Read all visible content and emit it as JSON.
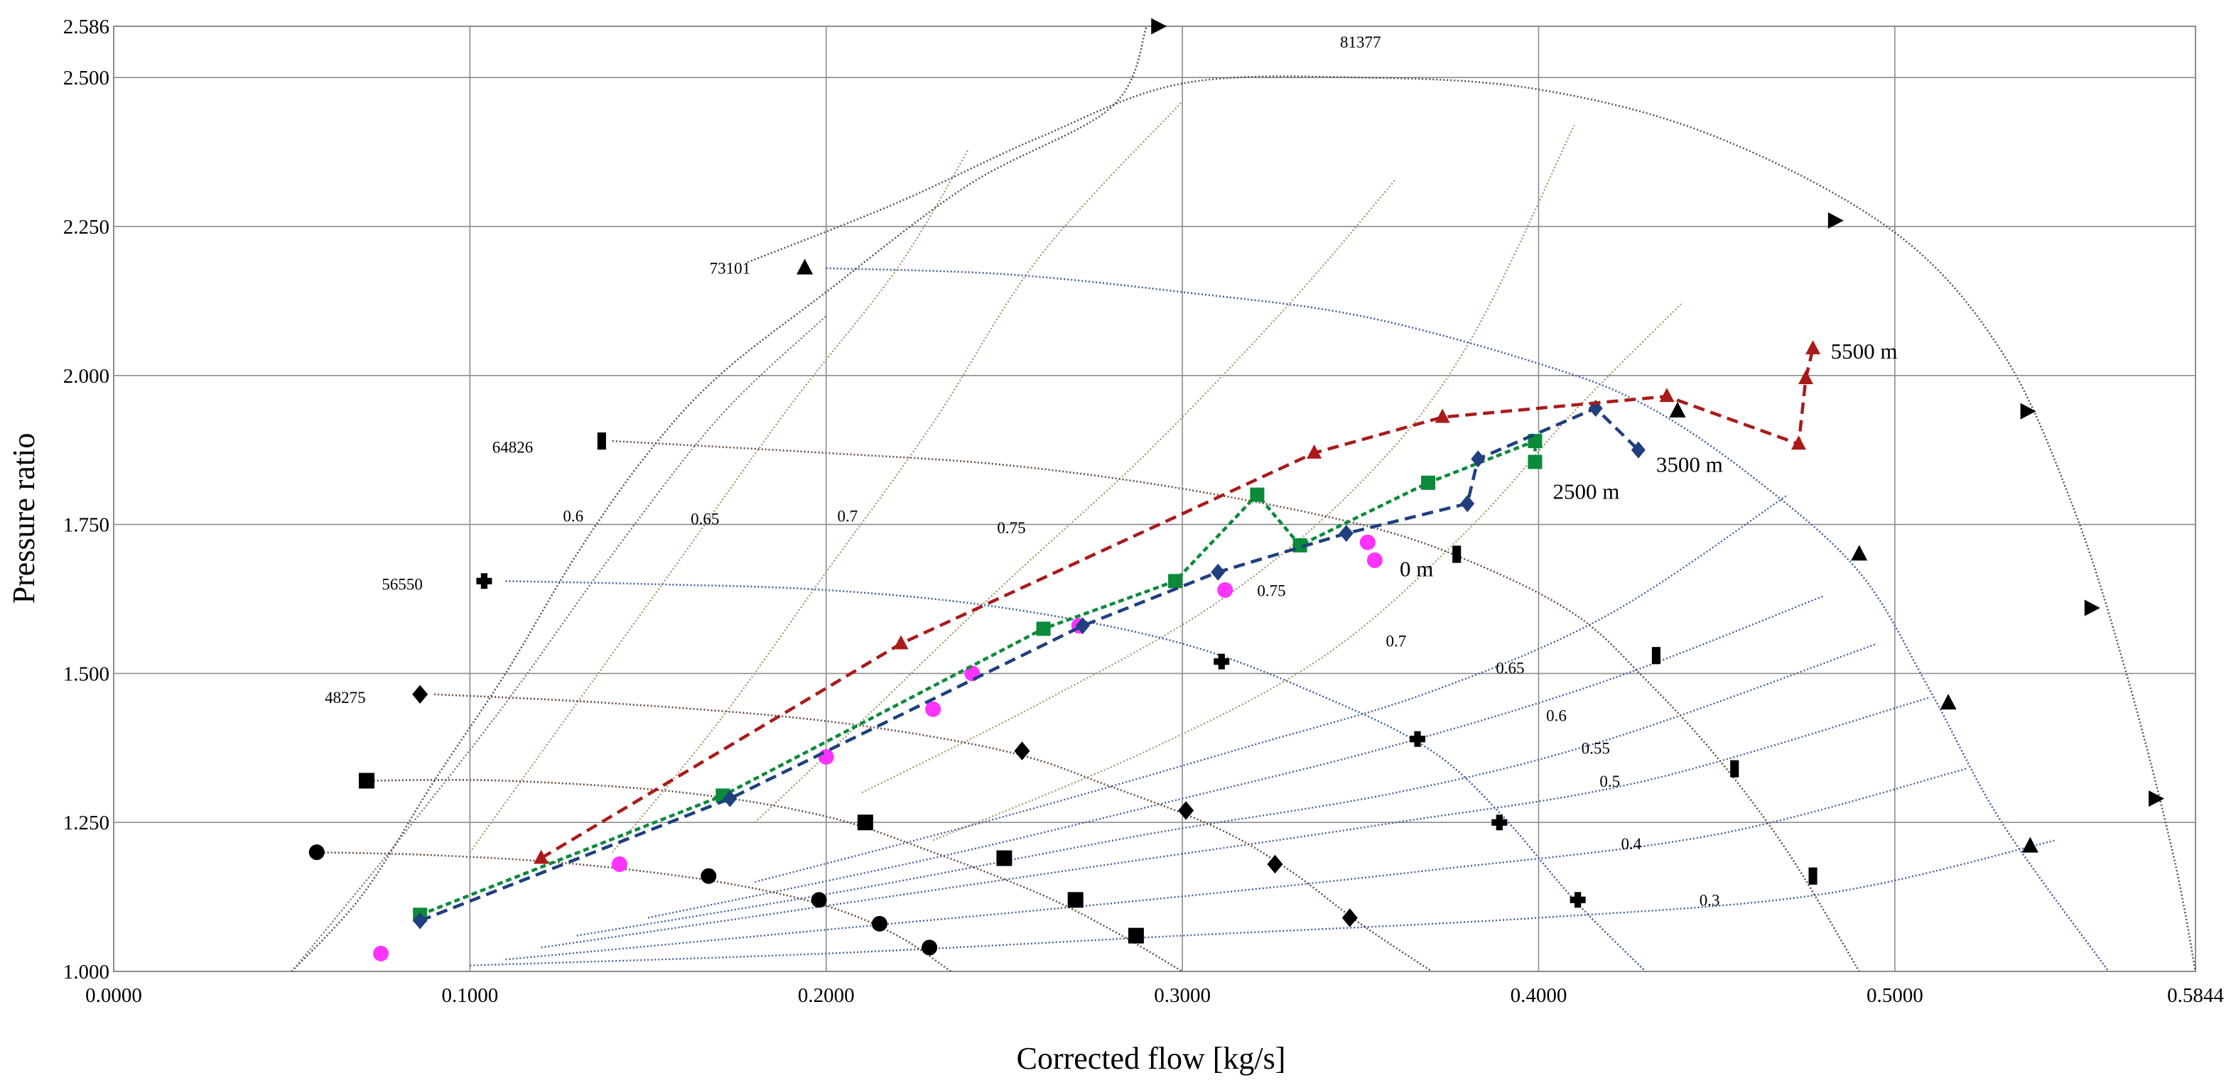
{
  "chart_data": {
    "type": "line",
    "title": "",
    "xlabel": "Corrected flow [kg/s]",
    "ylabel": "Pressure ratio",
    "xlim": [
      0.0,
      0.5844
    ],
    "ylim": [
      1.0,
      2.586
    ],
    "x_ticks": [
      {
        "value": 0.0,
        "label": "0.0000"
      },
      {
        "value": 0.1,
        "label": "0.1000"
      },
      {
        "value": 0.2,
        "label": "0.2000"
      },
      {
        "value": 0.3,
        "label": "0.3000"
      },
      {
        "value": 0.4,
        "label": "0.4000"
      },
      {
        "value": 0.5,
        "label": "0.5000"
      },
      {
        "value": 0.5844,
        "label": "0.5844"
      }
    ],
    "y_ticks": [
      {
        "value": 1.0,
        "label": "1.000"
      },
      {
        "value": 1.25,
        "label": "1.250"
      },
      {
        "value": 1.5,
        "label": "1.500"
      },
      {
        "value": 1.75,
        "label": "1.750"
      },
      {
        "value": 2.0,
        "label": "2.000"
      },
      {
        "value": 2.25,
        "label": "2.250"
      },
      {
        "value": 2.5,
        "label": "2.500"
      },
      {
        "value": 2.586,
        "label": "2.586"
      }
    ],
    "grid": true,
    "speed_lines": [
      {
        "name": "81377",
        "label": "81377",
        "color": "#555555",
        "marker": "triangle-right",
        "label_at": [
          0.35,
          2.56
        ],
        "x": [
          0.178,
          0.22,
          0.26,
          0.3,
          0.35,
          0.4,
          0.45,
          0.5,
          0.53,
          0.55,
          0.565,
          0.578,
          0.5844
        ],
        "y": [
          2.19,
          2.29,
          2.4,
          2.49,
          2.5,
          2.48,
          2.4,
          2.24,
          2.04,
          1.78,
          1.5,
          1.2,
          1.0
        ],
        "markers_x": [
          0.293,
          0.483,
          0.537,
          0.555,
          0.573
        ],
        "markers_y": [
          2.586,
          2.26,
          1.94,
          1.61,
          1.29
        ]
      },
      {
        "name": "73101",
        "label": "73101",
        "color": "#3f5f9f",
        "marker": "triangle-up",
        "label_at": [
          0.173,
          2.18
        ],
        "x": [
          0.2,
          0.25,
          0.3,
          0.35,
          0.4,
          0.43,
          0.46,
          0.49,
          0.51,
          0.53,
          0.56
        ],
        "y": [
          2.18,
          2.17,
          2.14,
          2.1,
          2.02,
          1.95,
          1.83,
          1.67,
          1.47,
          1.25,
          1.0
        ],
        "markers_x": [
          0.194,
          0.439,
          0.49,
          0.515,
          0.538
        ],
        "markers_y": [
          2.18,
          1.94,
          1.7,
          1.45,
          1.21
        ]
      },
      {
        "name": "64826",
        "label": "64826",
        "color": "#6b4c3b",
        "marker": "rect-v",
        "label_at": [
          0.112,
          1.88
        ],
        "x": [
          0.14,
          0.2,
          0.25,
          0.3,
          0.35,
          0.38,
          0.41,
          0.43,
          0.45,
          0.47,
          0.49
        ],
        "y": [
          1.89,
          1.87,
          1.85,
          1.81,
          1.75,
          1.69,
          1.6,
          1.49,
          1.36,
          1.2,
          1.0
        ],
        "markers_x": [
          0.137,
          0.377,
          0.433,
          0.455,
          0.477
        ],
        "markers_y": [
          1.89,
          1.7,
          1.53,
          1.34,
          1.16
        ]
      },
      {
        "name": "56550",
        "label": "56550",
        "color": "#3f5f9f",
        "marker": "plus",
        "label_at": [
          0.081,
          1.65
        ],
        "x": [
          0.11,
          0.15,
          0.2,
          0.25,
          0.3,
          0.34,
          0.37,
          0.39,
          0.41,
          0.43
        ],
        "y": [
          1.655,
          1.65,
          1.64,
          1.61,
          1.55,
          1.46,
          1.37,
          1.26,
          1.12,
          1.0
        ],
        "markers_x": [
          0.104,
          0.311,
          0.366,
          0.389,
          0.411
        ],
        "markers_y": [
          1.655,
          1.52,
          1.39,
          1.25,
          1.12
        ]
      },
      {
        "name": "48275",
        "label": "48275",
        "color": "#6b4c3b",
        "marker": "diamond",
        "label_at": [
          0.065,
          1.46
        ],
        "x": [
          0.09,
          0.14,
          0.2,
          0.25,
          0.28,
          0.31,
          0.33,
          0.35,
          0.37
        ],
        "y": [
          1.465,
          1.45,
          1.42,
          1.37,
          1.31,
          1.24,
          1.17,
          1.08,
          1.0
        ],
        "markers_x": [
          0.086,
          0.255,
          0.301,
          0.326,
          0.347
        ],
        "markers_y": [
          1.465,
          1.37,
          1.27,
          1.18,
          1.09
        ]
      },
      {
        "name": "square",
        "label": "",
        "color": "#6b4c3b",
        "marker": "square",
        "label_at": null,
        "x": [
          0.07,
          0.11,
          0.16,
          0.2,
          0.23,
          0.26,
          0.28,
          0.3
        ],
        "y": [
          1.32,
          1.32,
          1.3,
          1.26,
          1.2,
          1.13,
          1.07,
          1.0
        ],
        "markers_x": [
          0.071,
          0.211,
          0.25,
          0.27,
          0.287
        ],
        "markers_y": [
          1.32,
          1.25,
          1.19,
          1.12,
          1.06
        ]
      },
      {
        "name": "circle",
        "label": "",
        "color": "#6b4c3b",
        "marker": "circle",
        "label_at": null,
        "x": [
          0.057,
          0.09,
          0.13,
          0.17,
          0.2,
          0.22,
          0.235
        ],
        "y": [
          1.2,
          1.195,
          1.18,
          1.15,
          1.11,
          1.06,
          1.0
        ],
        "markers_x": [
          0.057,
          0.167,
          0.198,
          0.215,
          0.229
        ],
        "markers_y": [
          1.2,
          1.16,
          1.12,
          1.08,
          1.04
        ]
      }
    ],
    "efficiency_lines": [
      {
        "label": "0.6",
        "color": "#777777",
        "label_at": [
          0.129,
          1.755
        ],
        "x": [
          0.05,
          0.08,
          0.11,
          0.14,
          0.17,
          0.2
        ],
        "y": [
          1.0,
          1.22,
          1.45,
          1.7,
          1.93,
          2.1
        ]
      },
      {
        "label": "0.65",
        "color": "#a89a6a",
        "label_at": [
          0.166,
          1.75
        ],
        "x": [
          0.1,
          0.13,
          0.16,
          0.19,
          0.22,
          0.24
        ],
        "y": [
          1.2,
          1.45,
          1.7,
          1.95,
          2.18,
          2.38
        ]
      },
      {
        "label": "0.7",
        "color": "#a89a6a",
        "label_at": [
          0.206,
          1.755
        ],
        "x": [
          0.14,
          0.17,
          0.2,
          0.23,
          0.26,
          0.3
        ],
        "y": [
          1.2,
          1.42,
          1.67,
          1.92,
          2.2,
          2.46
        ]
      },
      {
        "label": "0.75",
        "color": "#a89a6a",
        "label_at": [
          0.252,
          1.735
        ],
        "x": [
          0.18,
          0.21,
          0.25,
          0.29,
          0.33,
          0.36
        ],
        "y": [
          1.25,
          1.42,
          1.65,
          1.87,
          2.12,
          2.33
        ]
      },
      {
        "label": "0.75",
        "color": "#a89a6a",
        "label_at": [
          0.325,
          1.63
        ],
        "x": [
          0.21,
          0.26,
          0.31,
          0.35,
          0.38,
          0.41
        ],
        "y": [
          1.3,
          1.45,
          1.62,
          1.82,
          2.05,
          2.42
        ]
      },
      {
        "label": "0.7",
        "color": "#a89a6a",
        "label_at": [
          0.36,
          1.545
        ],
        "x": [
          0.23,
          0.29,
          0.34,
          0.38,
          0.41,
          0.44
        ],
        "y": [
          1.22,
          1.37,
          1.53,
          1.74,
          1.94,
          2.12
        ]
      },
      {
        "label": "0.65",
        "color": "#3f5f9f",
        "label_at": [
          0.392,
          1.5
        ],
        "x": [
          0.18,
          0.25,
          0.32,
          0.37,
          0.42,
          0.47
        ],
        "y": [
          1.15,
          1.26,
          1.38,
          1.47,
          1.6,
          1.8
        ]
      },
      {
        "label": "0.6",
        "color": "#3f5f9f",
        "label_at": [
          0.405,
          1.42
        ],
        "x": [
          0.15,
          0.23,
          0.3,
          0.36,
          0.42,
          0.48
        ],
        "y": [
          1.09,
          1.19,
          1.29,
          1.38,
          1.49,
          1.63
        ]
      },
      {
        "label": "0.55",
        "color": "#3f5f9f",
        "label_at": [
          0.416,
          1.365
        ],
        "x": [
          0.13,
          0.21,
          0.29,
          0.36,
          0.42,
          0.495
        ],
        "y": [
          1.06,
          1.14,
          1.23,
          1.3,
          1.39,
          1.55
        ]
      },
      {
        "label": "0.5",
        "color": "#3f5f9f",
        "label_at": [
          0.42,
          1.31
        ],
        "x": [
          0.12,
          0.2,
          0.28,
          0.36,
          0.43,
          0.51
        ],
        "y": [
          1.04,
          1.11,
          1.18,
          1.25,
          1.32,
          1.46
        ]
      },
      {
        "label": "0.4",
        "color": "#3f5f9f",
        "label_at": [
          0.426,
          1.205
        ],
        "x": [
          0.11,
          0.2,
          0.29,
          0.37,
          0.45,
          0.52
        ],
        "y": [
          1.02,
          1.07,
          1.12,
          1.17,
          1.23,
          1.34
        ]
      },
      {
        "label": "0.3",
        "color": "#3f5f9f",
        "label_at": [
          0.448,
          1.11
        ],
        "x": [
          0.1,
          0.2,
          0.3,
          0.4,
          0.48,
          0.545
        ],
        "y": [
          1.01,
          1.03,
          1.06,
          1.09,
          1.13,
          1.22
        ]
      }
    ],
    "surge_line": {
      "color": "#555555",
      "x": [
        0.05,
        0.07,
        0.09,
        0.11,
        0.13,
        0.15,
        0.17,
        0.2,
        0.24,
        0.28,
        0.29
      ],
      "y": [
        1.0,
        1.13,
        1.32,
        1.5,
        1.7,
        1.87,
        2.0,
        2.14,
        2.32,
        2.45,
        2.586
      ]
    },
    "series": [
      {
        "name": "0 m",
        "label": "0 m",
        "color": "#ff33ff",
        "marker": "circle",
        "line": false,
        "label_at": [
          0.361,
          1.675
        ],
        "x": [
          0.075,
          0.142,
          0.2,
          0.23,
          0.241,
          0.271,
          0.312,
          0.352,
          0.354
        ],
        "y": [
          1.03,
          1.18,
          1.36,
          1.44,
          1.5,
          1.58,
          1.64,
          1.72,
          1.69
        ]
      },
      {
        "name": "2500 m",
        "label": "2500 m",
        "color": "#0a8a3a",
        "marker": "square",
        "line": true,
        "label_at": [
          0.404,
          1.805
        ],
        "x": [
          0.086,
          0.171,
          0.261,
          0.298,
          0.321,
          0.333,
          0.369,
          0.399,
          0.399
        ],
        "y": [
          1.095,
          1.295,
          1.575,
          1.655,
          1.8,
          1.715,
          1.82,
          1.89,
          1.855
        ]
      },
      {
        "name": "3500 m",
        "label": "3500 m",
        "color": "#1f3f7f",
        "marker": "diamond",
        "line": true,
        "label_at": [
          0.433,
          1.85
        ],
        "x": [
          0.086,
          0.173,
          0.272,
          0.31,
          0.346,
          0.38,
          0.383,
          0.416,
          0.428
        ],
        "y": [
          1.085,
          1.29,
          1.58,
          1.67,
          1.735,
          1.785,
          1.86,
          1.945,
          1.875
        ]
      },
      {
        "name": "5500 m",
        "label": "5500 m",
        "color": "#aa1a1a",
        "marker": "triangle-up",
        "line": true,
        "label_at": [
          0.482,
          2.04
        ],
        "x": [
          0.12,
          0.221,
          0.337,
          0.373,
          0.436,
          0.473,
          0.475,
          0.477
        ],
        "y": [
          1.19,
          1.55,
          1.87,
          1.93,
          1.965,
          1.885,
          1.995,
          2.045
        ]
      }
    ]
  }
}
